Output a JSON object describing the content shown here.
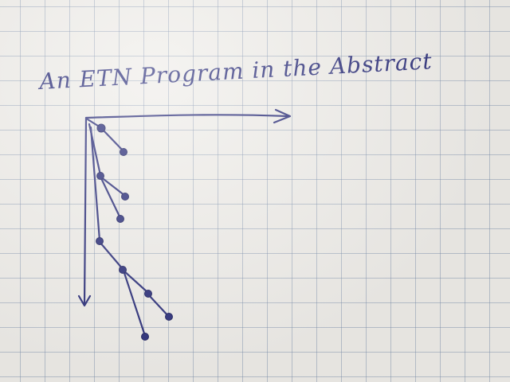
{
  "title": "An ETN Program in the Abstract",
  "ink_color": "#2c2f7a",
  "node_count": 10
}
